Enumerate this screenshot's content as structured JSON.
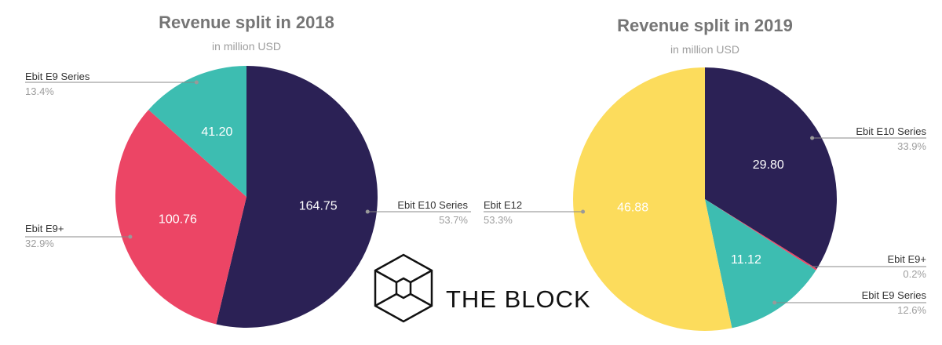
{
  "chart_data": [
    {
      "type": "pie",
      "title": "Revenue split in 2018",
      "subtitle": "in million USD",
      "slices": [
        {
          "name": "Ebit E10 Series",
          "value": 164.75,
          "value_label": "164.75",
          "percent": "53.7%",
          "color": "#2b2155"
        },
        {
          "name": "Ebit E9+",
          "value": 100.76,
          "value_label": "100.76",
          "percent": "32.9%",
          "color": "#ec4565"
        },
        {
          "name": "Ebit E9 Series",
          "value": 41.2,
          "value_label": "41.20",
          "percent": "13.4%",
          "color": "#3dbdb1"
        }
      ]
    },
    {
      "type": "pie",
      "title": "Revenue split in 2019",
      "subtitle": "in million USD",
      "slices": [
        {
          "name": "Ebit E10 Series",
          "value": 29.8,
          "value_label": "29.80",
          "percent": "33.9%",
          "color": "#2b2155"
        },
        {
          "name": "Ebit E9+",
          "value": 0.18,
          "percent": "0.2%",
          "color": "#ec4565"
        },
        {
          "name": "Ebit E9 Series",
          "value": 11.12,
          "value_label": "11.12",
          "percent": "12.6%",
          "color": "#3dbdb1"
        },
        {
          "name": "Ebit E12",
          "value": 46.88,
          "value_label": "46.88",
          "percent": "53.3%",
          "color": "#fcdc5c"
        }
      ]
    }
  ],
  "logo": {
    "text": "THE BLOCK"
  }
}
